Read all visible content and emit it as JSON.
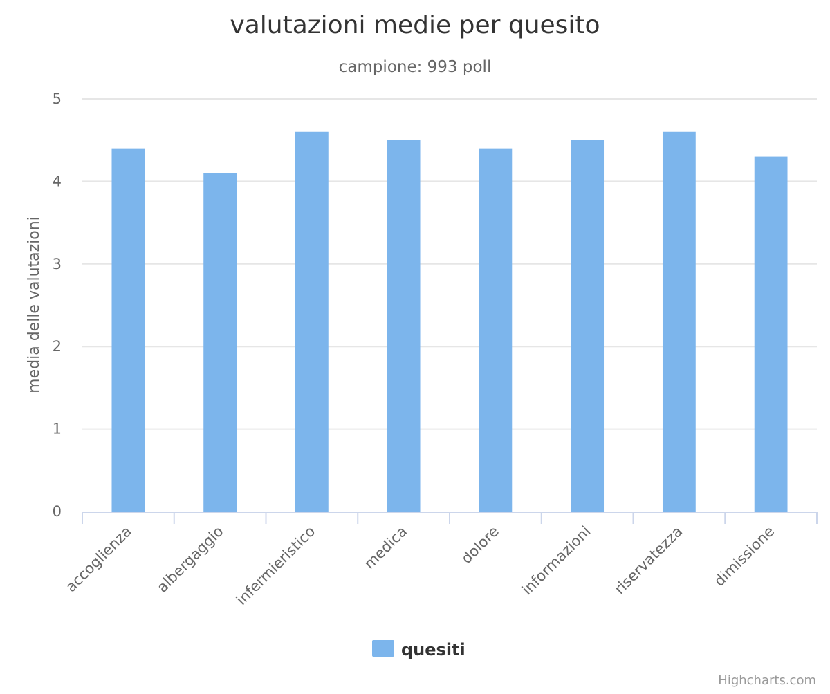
{
  "chart_data": {
    "type": "bar",
    "title": "valutazioni medie per quesito",
    "subtitle": "campione: 993 poll",
    "xlabel": "",
    "ylabel": "media delle valutazioni",
    "categories": [
      "accoglienza",
      "albergaggio",
      "infermieristico",
      "medica",
      "dolore",
      "informazioni",
      "riservatezza",
      "dimissione"
    ],
    "series": [
      {
        "name": "quesiti",
        "values": [
          4.4,
          4.1,
          4.6,
          4.5,
          4.4,
          4.5,
          4.6,
          4.3
        ]
      }
    ],
    "ylim": [
      0,
      5
    ],
    "yticks": [
      "0",
      "1",
      "2",
      "3",
      "4",
      "5"
    ],
    "grid": true,
    "legend_position": "bottom-center"
  },
  "colors": {
    "series": "#7cb5ec",
    "grid": "#e6e6e6",
    "axis": "#ccd6eb",
    "title": "#333333",
    "subtitle": "#666666",
    "label": "#666666",
    "credits": "#999999"
  },
  "credits": "Highcharts.com"
}
